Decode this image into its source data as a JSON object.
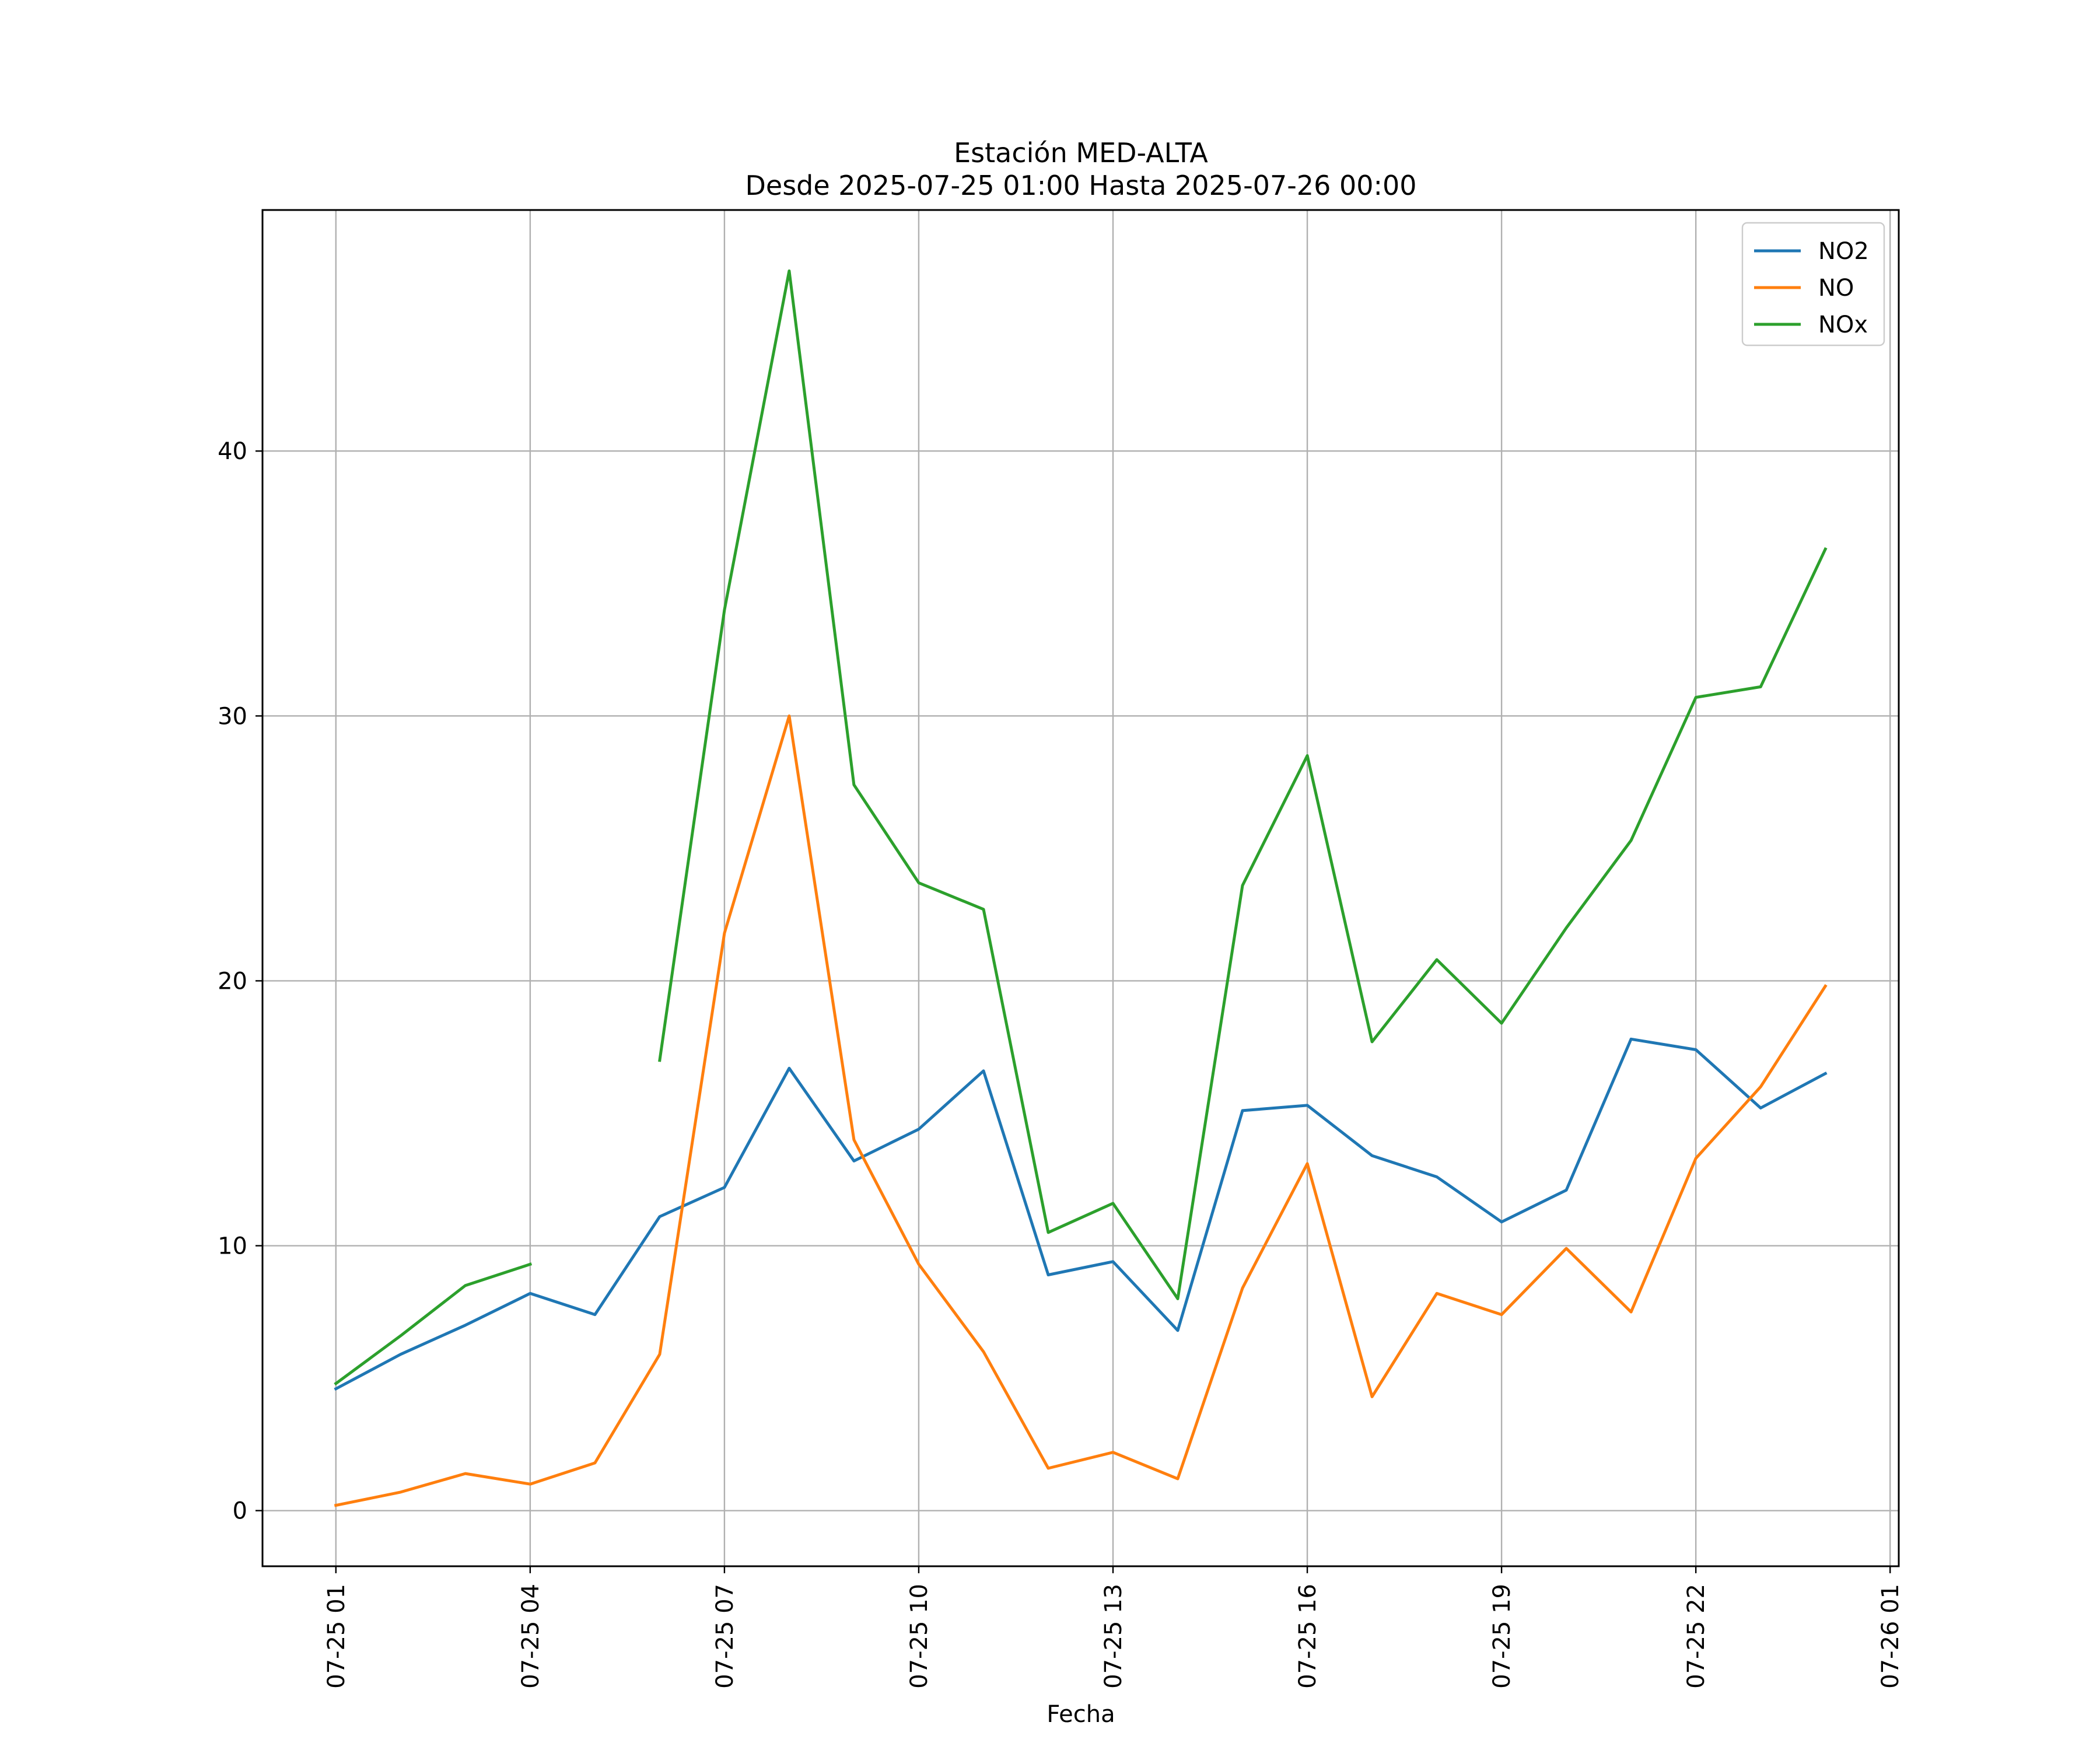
{
  "chart_data": {
    "type": "line",
    "title": "Estación MED-ALTA",
    "subtitle": "Desde 2025-07-25 01:00 Hasta 2025-07-26 00:00",
    "xlabel": "Fecha",
    "ylabel": "",
    "x": [
      "2025-07-25 01:00",
      "2025-07-25 02:00",
      "2025-07-25 03:00",
      "2025-07-25 04:00",
      "2025-07-25 05:00",
      "2025-07-25 06:00",
      "2025-07-25 07:00",
      "2025-07-25 08:00",
      "2025-07-25 09:00",
      "2025-07-25 10:00",
      "2025-07-25 11:00",
      "2025-07-25 12:00",
      "2025-07-25 13:00",
      "2025-07-25 14:00",
      "2025-07-25 15:00",
      "2025-07-25 16:00",
      "2025-07-25 17:00",
      "2025-07-25 18:00",
      "2025-07-25 19:00",
      "2025-07-25 20:00",
      "2025-07-25 21:00",
      "2025-07-25 22:00",
      "2025-07-25 23:00",
      "2025-07-26 00:00"
    ],
    "xlim": [
      "2025-07-24 23:52",
      "2025-07-26 01:08"
    ],
    "ylim": [
      -2.1,
      49.1
    ],
    "xticks": [
      "07-25 01",
      "07-25 04",
      "07-25 07",
      "07-25 10",
      "07-25 13",
      "07-25 16",
      "07-25 19",
      "07-25 22",
      "07-26 01"
    ],
    "yticks": [
      "0",
      "10",
      "20",
      "30",
      "40"
    ],
    "grid": true,
    "legend": "top-right",
    "series": [
      {
        "name": "NO2",
        "color": "#1f77b4",
        "values": [
          4.6,
          5.9,
          7.0,
          8.2,
          7.4,
          11.1,
          12.2,
          16.7,
          13.2,
          14.4,
          16.6,
          8.9,
          9.4,
          6.8,
          15.1,
          15.3,
          13.4,
          12.6,
          10.9,
          12.1,
          17.8,
          17.4,
          15.2,
          16.5
        ]
      },
      {
        "name": "NO",
        "color": "#ff7f0e",
        "values": [
          0.2,
          0.7,
          1.4,
          1.0,
          1.8,
          5.9,
          21.8,
          30.0,
          14.0,
          9.3,
          6.0,
          1.6,
          2.2,
          1.2,
          8.4,
          13.1,
          4.3,
          8.2,
          7.4,
          9.9,
          7.5,
          13.3,
          16.0,
          19.8
        ]
      },
      {
        "name": "NOx",
        "color": "#2ca02c",
        "values": [
          4.8,
          6.6,
          8.5,
          9.3,
          null,
          17.0,
          34.0,
          46.8,
          27.4,
          23.7,
          22.7,
          10.5,
          11.6,
          8.0,
          23.6,
          28.5,
          17.7,
          20.8,
          18.4,
          22.0,
          25.3,
          30.7,
          31.1,
          36.3
        ]
      }
    ]
  }
}
